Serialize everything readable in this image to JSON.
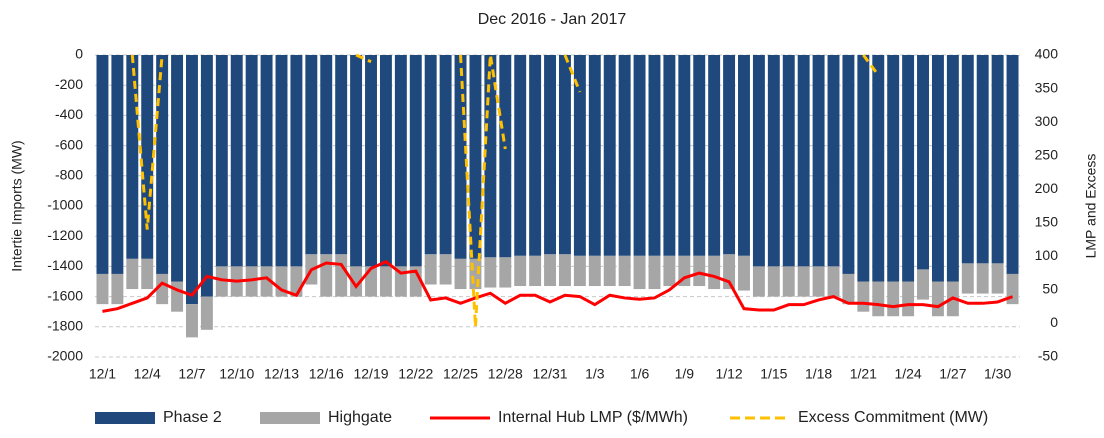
{
  "chart_data": {
    "type": "bar",
    "title": "Dec 2016 - Jan 2017",
    "ylabel": "Intertie Imports (MW)",
    "y2label": "LMP and Excess",
    "categories": [
      "12/1",
      null,
      null,
      "12/4",
      null,
      null,
      "12/7",
      null,
      null,
      "12/10",
      null,
      null,
      "12/13",
      null,
      null,
      "12/16",
      null,
      null,
      "12/19",
      null,
      null,
      "12/22",
      null,
      null,
      "12/25",
      null,
      null,
      "12/28",
      null,
      null,
      "12/31",
      null,
      null,
      "1/3",
      null,
      null,
      "1/6",
      null,
      null,
      "1/9",
      null,
      null,
      "1/12",
      null,
      null,
      "1/15",
      null,
      null,
      "1/18",
      null,
      null,
      "1/21",
      null,
      null,
      "1/24",
      null,
      null,
      "1/27",
      null,
      null,
      "1/30",
      null
    ],
    "series": [
      {
        "name": "Phase 2",
        "color": "#1f497d",
        "kind": "bar",
        "values": [
          -1450,
          -1450,
          -1350,
          -1350,
          -1450,
          -1500,
          -1650,
          -1600,
          -1400,
          -1400,
          -1400,
          -1400,
          -1400,
          -1400,
          -1320,
          -1320,
          -1320,
          -1400,
          -1400,
          -1400,
          -1400,
          -1400,
          -1320,
          -1320,
          -1350,
          -1350,
          -1340,
          -1340,
          -1330,
          -1330,
          -1320,
          -1320,
          -1330,
          -1330,
          -1330,
          -1330,
          -1330,
          -1330,
          -1330,
          -1330,
          -1330,
          -1330,
          -1320,
          -1330,
          -1400,
          -1400,
          -1400,
          -1400,
          -1400,
          -1400,
          -1450,
          -1500,
          -1500,
          -1500,
          -1500,
          -1420,
          -1500,
          -1500,
          -1380,
          -1380,
          -1380,
          -1450
        ]
      },
      {
        "name": "Highgate",
        "color": "#a6a6a6",
        "kind": "bar",
        "values": [
          -200,
          -200,
          -200,
          -200,
          -200,
          -200,
          -220,
          -220,
          -200,
          -200,
          -200,
          -200,
          -200,
          -200,
          -200,
          -280,
          -280,
          -200,
          -200,
          -200,
          -200,
          -200,
          -200,
          -200,
          -200,
          -200,
          -200,
          -200,
          -200,
          -200,
          -210,
          -210,
          -200,
          -200,
          -200,
          -200,
          -220,
          -220,
          -200,
          -200,
          -200,
          -220,
          -230,
          -230,
          -200,
          -200,
          -200,
          -200,
          -200,
          -200,
          -200,
          -200,
          -230,
          -230,
          -230,
          -200,
          -230,
          -230,
          -200,
          -200,
          -200,
          -200
        ]
      },
      {
        "name": "Internal Hub LMP ($/MWh)",
        "color": "#ff0000",
        "kind": "line",
        "axis": "y2",
        "values": [
          18,
          22,
          30,
          38,
          60,
          50,
          42,
          70,
          65,
          63,
          65,
          68,
          50,
          42,
          80,
          90,
          88,
          55,
          82,
          92,
          75,
          78,
          35,
          38,
          30,
          38,
          45,
          30,
          42,
          42,
          32,
          42,
          40,
          28,
          42,
          38,
          36,
          38,
          50,
          68,
          75,
          70,
          62,
          22,
          20,
          20,
          28,
          28,
          35,
          40,
          30,
          30,
          28,
          25,
          28,
          28,
          25,
          38,
          30,
          30,
          32,
          40
        ]
      },
      {
        "name": "Excess Commitment (MW)",
        "color": "#ffc000",
        "kind": "dashed",
        "axis": "y2",
        "values": [
          null,
          null,
          400,
          140,
          400,
          null,
          null,
          null,
          null,
          null,
          null,
          null,
          null,
          null,
          null,
          null,
          null,
          400,
          390,
          null,
          null,
          null,
          null,
          null,
          400,
          -5,
          400,
          260,
          null,
          null,
          null,
          400,
          345,
          null,
          null,
          null,
          null,
          null,
          null,
          null,
          null,
          null,
          null,
          null,
          null,
          null,
          null,
          null,
          null,
          null,
          null,
          400,
          370,
          null,
          null,
          null,
          null,
          null,
          null,
          null,
          null,
          null
        ]
      }
    ],
    "ylim": [
      -2000,
      0
    ],
    "yticks": [
      -2000,
      -1800,
      -1600,
      -1400,
      -1200,
      -1000,
      -800,
      -600,
      -400,
      -200,
      0
    ],
    "y2lim": [
      -50,
      400
    ],
    "y2ticks": [
      -50,
      0,
      50,
      100,
      150,
      200,
      250,
      300,
      350,
      400
    ],
    "grid": true
  }
}
